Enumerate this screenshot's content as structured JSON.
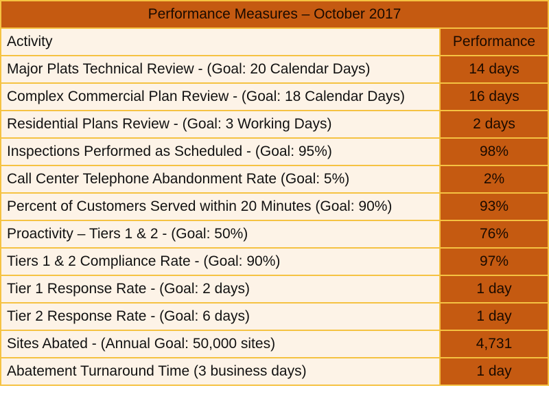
{
  "title": "Performance Measures – October 2017",
  "columns": {
    "activity": "Activity",
    "performance": "Performance"
  },
  "rows": [
    {
      "activity": "Major Plats Technical Review - (Goal: 20 Calendar Days)",
      "performance": "14 days"
    },
    {
      "activity": "Complex Commercial Plan Review - (Goal: 18 Calendar Days)",
      "performance": "16 days"
    },
    {
      "activity": "Residential Plans Review - (Goal: 3 Working Days)",
      "performance": "2 days"
    },
    {
      "activity": "Inspections Performed as Scheduled - (Goal: 95%)",
      "performance": "98%"
    },
    {
      "activity": "Call Center Telephone Abandonment Rate (Goal: 5%)",
      "performance": "2%"
    },
    {
      "activity": "Percent of Customers Served within 20 Minutes (Goal: 90%)",
      "performance": "93%"
    },
    {
      "activity": "Proactivity – Tiers 1 & 2 - (Goal: 50%)",
      "performance": "76%"
    },
    {
      "activity": "Tiers 1 & 2 Compliance Rate - (Goal: 90%)",
      "performance": "97%"
    },
    {
      "activity": "Tier 1 Response Rate - (Goal: 2 days)",
      "performance": "1 day"
    },
    {
      "activity": "Tier 2 Response Rate - (Goal: 6 days)",
      "performance": "1 day"
    },
    {
      "activity": "Sites Abated - (Annual Goal: 50,000 sites)",
      "performance": "4,731"
    },
    {
      "activity": "Abatement Turnaround Time (3 business days)",
      "performance": "1 day"
    }
  ],
  "colors": {
    "accent": "#c55a11",
    "border": "#f5c242",
    "cell": "#fdf3e7"
  }
}
